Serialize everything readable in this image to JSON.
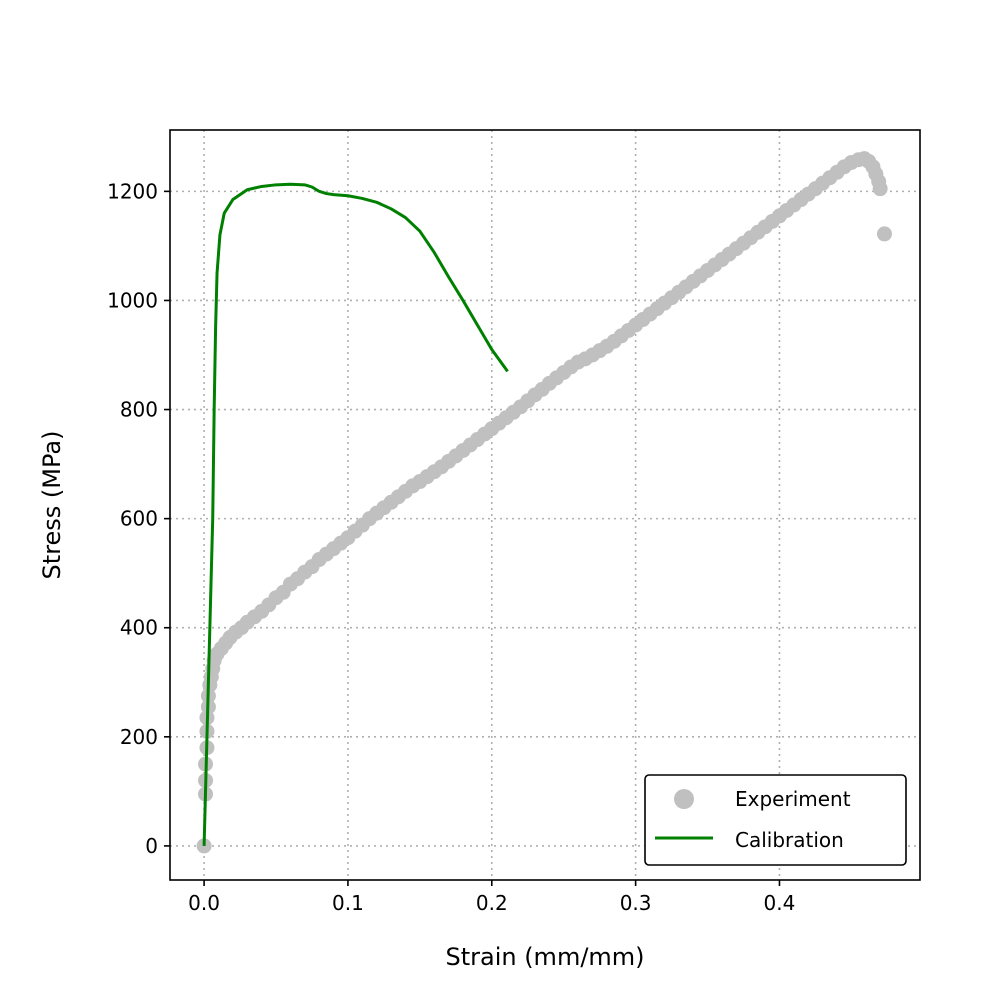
{
  "chart_data": {
    "type": "scatter",
    "xlabel": "Strain (mm/mm)",
    "ylabel": "Stress (MPa)",
    "xlim": [
      -0.0237,
      0.4977
    ],
    "ylim": [
      -62.5,
      1312.5
    ],
    "xticks": [
      0.0,
      0.1,
      0.2,
      0.3,
      0.4
    ],
    "xtick_labels": [
      "0.0",
      "0.1",
      "0.2",
      "0.3",
      "0.4"
    ],
    "yticks": [
      0,
      200,
      400,
      600,
      800,
      1000,
      1200
    ],
    "ytick_labels": [
      "0",
      "200",
      "400",
      "600",
      "800",
      "1000",
      "1200"
    ],
    "grid": true,
    "legend_position": "lower-right",
    "series": [
      {
        "name": "Experiment",
        "kind": "scatter",
        "color": "#c0c0c0",
        "points": [
          [
            0.0,
            0
          ],
          [
            0.001,
            95
          ],
          [
            0.001,
            120
          ],
          [
            0.001,
            150
          ],
          [
            0.002,
            180
          ],
          [
            0.002,
            210
          ],
          [
            0.002,
            235
          ],
          [
            0.003,
            255
          ],
          [
            0.003,
            275
          ],
          [
            0.004,
            295
          ],
          [
            0.005,
            310
          ],
          [
            0.006,
            325
          ],
          [
            0.007,
            340
          ],
          [
            0.009,
            352
          ],
          [
            0.012,
            362
          ],
          [
            0.015,
            372
          ],
          [
            0.018,
            382
          ],
          [
            0.022,
            392
          ],
          [
            0.026,
            400
          ],
          [
            0.03,
            410
          ],
          [
            0.035,
            420
          ],
          [
            0.04,
            430
          ],
          [
            0.045,
            442
          ],
          [
            0.05,
            455
          ],
          [
            0.055,
            465
          ],
          [
            0.06,
            480
          ],
          [
            0.065,
            490
          ],
          [
            0.07,
            502
          ],
          [
            0.075,
            512
          ],
          [
            0.08,
            525
          ],
          [
            0.085,
            535
          ],
          [
            0.09,
            545
          ],
          [
            0.095,
            555
          ],
          [
            0.1,
            565
          ],
          [
            0.105,
            577
          ],
          [
            0.11,
            588
          ],
          [
            0.115,
            600
          ],
          [
            0.12,
            610
          ],
          [
            0.125,
            620
          ],
          [
            0.13,
            630
          ],
          [
            0.135,
            640
          ],
          [
            0.14,
            650
          ],
          [
            0.145,
            660
          ],
          [
            0.15,
            668
          ],
          [
            0.155,
            677
          ],
          [
            0.16,
            686
          ],
          [
            0.165,
            695
          ],
          [
            0.17,
            705
          ],
          [
            0.175,
            715
          ],
          [
            0.18,
            725
          ],
          [
            0.185,
            735
          ],
          [
            0.19,
            745
          ],
          [
            0.195,
            755
          ],
          [
            0.2,
            765
          ],
          [
            0.205,
            775
          ],
          [
            0.21,
            785
          ],
          [
            0.215,
            795
          ],
          [
            0.22,
            805
          ],
          [
            0.225,
            816
          ],
          [
            0.23,
            827
          ],
          [
            0.235,
            837
          ],
          [
            0.24,
            848
          ],
          [
            0.245,
            858
          ],
          [
            0.25,
            868
          ],
          [
            0.255,
            878
          ],
          [
            0.26,
            887
          ],
          [
            0.265,
            893
          ],
          [
            0.27,
            900
          ],
          [
            0.275,
            908
          ],
          [
            0.28,
            916
          ],
          [
            0.285,
            925
          ],
          [
            0.29,
            935
          ],
          [
            0.295,
            945
          ],
          [
            0.3,
            955
          ],
          [
            0.305,
            965
          ],
          [
            0.31,
            975
          ],
          [
            0.315,
            985
          ],
          [
            0.32,
            995
          ],
          [
            0.325,
            1005
          ],
          [
            0.33,
            1015
          ],
          [
            0.335,
            1025
          ],
          [
            0.34,
            1035
          ],
          [
            0.345,
            1045
          ],
          [
            0.35,
            1055
          ],
          [
            0.355,
            1065
          ],
          [
            0.36,
            1075
          ],
          [
            0.365,
            1085
          ],
          [
            0.37,
            1095
          ],
          [
            0.375,
            1105
          ],
          [
            0.38,
            1115
          ],
          [
            0.385,
            1125
          ],
          [
            0.39,
            1135
          ],
          [
            0.395,
            1145
          ],
          [
            0.4,
            1155
          ],
          [
            0.405,
            1165
          ],
          [
            0.41,
            1175
          ],
          [
            0.415,
            1185
          ],
          [
            0.42,
            1195
          ],
          [
            0.425,
            1205
          ],
          [
            0.43,
            1215
          ],
          [
            0.435,
            1225
          ],
          [
            0.44,
            1235
          ],
          [
            0.445,
            1245
          ],
          [
            0.45,
            1253
          ],
          [
            0.455,
            1258
          ],
          [
            0.459,
            1260
          ],
          [
            0.462,
            1255
          ],
          [
            0.465,
            1245
          ],
          [
            0.467,
            1232
          ],
          [
            0.469,
            1218
          ],
          [
            0.47,
            1205
          ],
          [
            0.473,
            1122
          ]
        ]
      },
      {
        "name": "Calibration",
        "kind": "line",
        "color": "#008000",
        "points": [
          [
            0.0,
            0
          ],
          [
            0.002,
            200
          ],
          [
            0.004,
            400
          ],
          [
            0.006,
            600
          ],
          [
            0.007,
            800
          ],
          [
            0.008,
            950
          ],
          [
            0.009,
            1050
          ],
          [
            0.011,
            1120
          ],
          [
            0.014,
            1160
          ],
          [
            0.02,
            1185
          ],
          [
            0.03,
            1203
          ],
          [
            0.04,
            1209
          ],
          [
            0.05,
            1212
          ],
          [
            0.06,
            1213
          ],
          [
            0.07,
            1212
          ],
          [
            0.075,
            1208
          ],
          [
            0.08,
            1200
          ],
          [
            0.085,
            1196
          ],
          [
            0.09,
            1194
          ],
          [
            0.1,
            1192
          ],
          [
            0.11,
            1187
          ],
          [
            0.12,
            1180
          ],
          [
            0.13,
            1168
          ],
          [
            0.14,
            1152
          ],
          [
            0.15,
            1127
          ],
          [
            0.16,
            1088
          ],
          [
            0.17,
            1043
          ],
          [
            0.18,
            1000
          ],
          [
            0.19,
            955
          ],
          [
            0.2,
            910
          ],
          [
            0.211,
            870
          ]
        ]
      }
    ]
  }
}
